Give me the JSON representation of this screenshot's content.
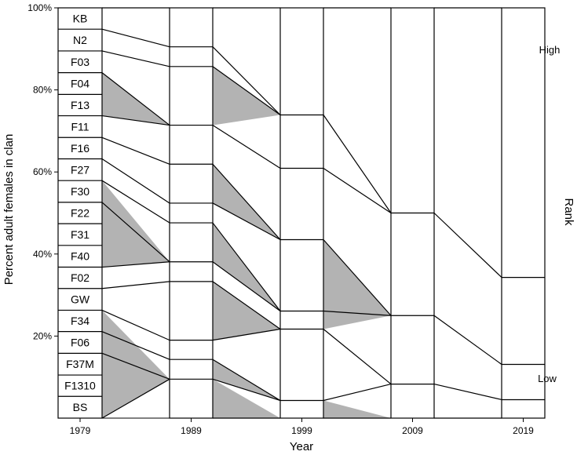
{
  "chart_data": {
    "type": "area",
    "title": "",
    "xlabel": "Year",
    "ylabel": "Percent adult females in clan",
    "ylim": [
      0,
      100
    ],
    "x_ticks": [
      "1979",
      "1989",
      "1999",
      "2009",
      "2019"
    ],
    "y_ticks": [
      "20%",
      "40%",
      "60%",
      "80%",
      "100%"
    ],
    "rank_label": "Rank",
    "rank_high": "High",
    "rank_low": "Low",
    "matrilines_1979": [
      "KB",
      "N2",
      "F03",
      "F04",
      "F13",
      "F11",
      "F16",
      "F27",
      "F30",
      "F22",
      "F31",
      "F40",
      "F02",
      "GW",
      "F34",
      "F06",
      "F37M",
      "F1310",
      "BS"
    ],
    "boundaries_1979": [
      100,
      94.8,
      89.5,
      84.2,
      78.9,
      73.7,
      68.4,
      63.2,
      57.9,
      52.6,
      47.4,
      42.1,
      36.8,
      31.6,
      26.3,
      21.1,
      15.8,
      10.5,
      5.3,
      0
    ],
    "boundaries_1989": [
      100,
      90.5,
      85.7,
      71.4,
      61.9,
      52.4,
      47.6,
      38.1,
      33.3,
      19,
      14.3,
      9.5,
      0
    ],
    "boundaries_1999": [
      100,
      73.9,
      60.9,
      43.5,
      26.1,
      21.7,
      4.3,
      0
    ],
    "boundaries_2009": [
      100,
      50,
      25,
      8.3,
      0
    ],
    "boundaries_2019": [
      100,
      34.3,
      13.1,
      4.5,
      0
    ],
    "links_1979_1989": [
      [
        0,
        0
      ],
      [
        1,
        1
      ],
      [
        2,
        2
      ],
      [
        3,
        3
      ],
      [
        5,
        3
      ],
      [
        6,
        4
      ],
      [
        7,
        5
      ],
      [
        8,
        6
      ],
      [
        9,
        7
      ],
      [
        12,
        7
      ],
      [
        13,
        8
      ],
      [
        14,
        9
      ],
      [
        15,
        10
      ],
      [
        16,
        11
      ],
      [
        19,
        11
      ]
    ],
    "links_1989_1999": [
      [
        0,
        0
      ],
      [
        1,
        1
      ],
      [
        2,
        1
      ],
      [
        3,
        2
      ],
      [
        4,
        3
      ],
      [
        5,
        3
      ],
      [
        6,
        4
      ],
      [
        7,
        4
      ],
      [
        8,
        5
      ],
      [
        9,
        5
      ],
      [
        10,
        6
      ],
      [
        11,
        6
      ],
      [
        12,
        7
      ]
    ],
    "links_1999_2009": [
      [
        0,
        0
      ],
      [
        1,
        1
      ],
      [
        2,
        1
      ],
      [
        3,
        2
      ],
      [
        4,
        2
      ],
      [
        5,
        3
      ],
      [
        6,
        3
      ],
      [
        7,
        4
      ]
    ],
    "links_2009_2019": [
      [
        0,
        0
      ],
      [
        1,
        1
      ],
      [
        2,
        2
      ],
      [
        3,
        3
      ],
      [
        4,
        4
      ]
    ],
    "shaded_1979_1989": [
      [
        3,
        5,
        3
      ],
      [
        8,
        12,
        7
      ],
      [
        14,
        19,
        11
      ]
    ],
    "shaded_1989_1999": [
      [
        2,
        3,
        1
      ],
      [
        4,
        5,
        3
      ],
      [
        6,
        7,
        4
      ],
      [
        8,
        9,
        5
      ],
      [
        10,
        11,
        6
      ],
      [
        11,
        12,
        7
      ]
    ],
    "shaded_1999_2009": [
      [
        3,
        5,
        2
      ],
      [
        6,
        7,
        4
      ]
    ],
    "colors": {
      "shade": "#b3b3b3",
      "line": "#000000",
      "box": "#ffffff"
    }
  }
}
